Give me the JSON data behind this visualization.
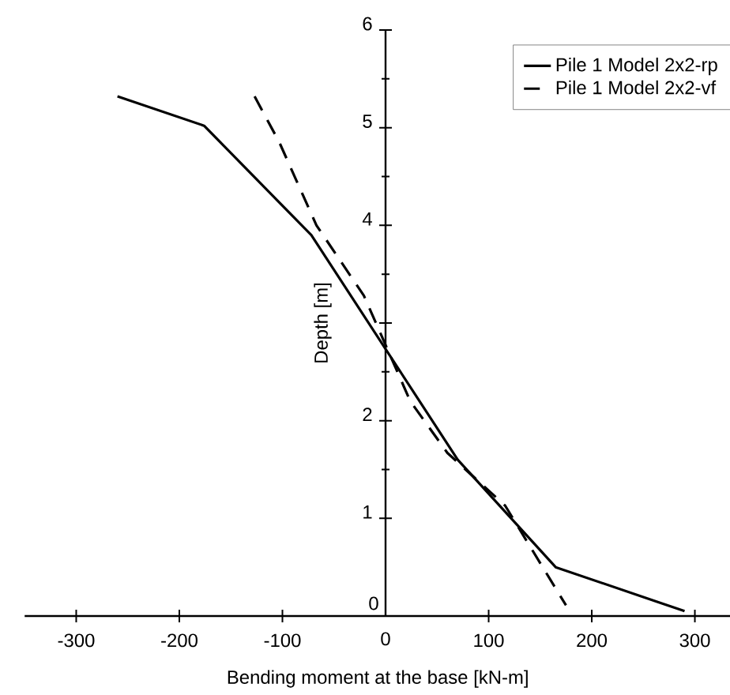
{
  "chart_data": {
    "type": "line",
    "xlabel": "Bending moment at the base [kN-m]",
    "ylabel": "Depth [m]",
    "xlim": [
      -350,
      335
    ],
    "ylim": [
      0,
      6
    ],
    "xticks": [
      -300,
      -200,
      -100,
      0,
      100,
      200,
      300
    ],
    "yticks": [
      0,
      1,
      2,
      {
        "value": 3,
        "label": null
      },
      4,
      5,
      6
    ],
    "legend": "top right",
    "marker": "none",
    "series": [
      {
        "name": "Pile 1 Model 2x2-rp",
        "color": "#000000",
        "line_style": "solid",
        "x": [
          -260,
          -176,
          -72,
          70,
          165,
          290
        ],
        "values": [
          5.32,
          5.02,
          3.9,
          1.6,
          0.5,
          0.05
        ]
      },
      {
        "name": "Pile 1 Model 2x2-vf",
        "color": "#000000",
        "line_style": "dashed",
        "x": [
          -127,
          -103,
          -67,
          -21,
          24,
          60,
          116,
          175
        ],
        "values": [
          5.32,
          4.85,
          4.0,
          3.28,
          2.2,
          1.67,
          1.13,
          0.11
        ]
      }
    ]
  }
}
